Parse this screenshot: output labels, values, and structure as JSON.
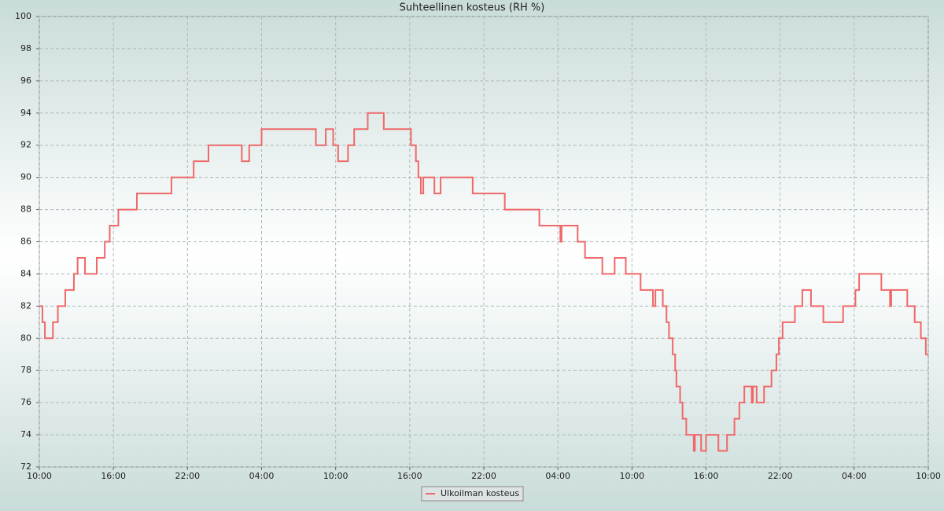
{
  "chart_data": {
    "type": "line",
    "step": "post",
    "title": "Suhteellinen kosteus (RH %)",
    "x": [
      0,
      0.25,
      0.45,
      1.1,
      1.5,
      2.1,
      2.8,
      3.1,
      3.7,
      4.65,
      5.3,
      5.7,
      6.4,
      7.9,
      10.7,
      12.5,
      13.7,
      16.4,
      17,
      18,
      22.4,
      23.2,
      23.8,
      24.2,
      25,
      25.5,
      26.6,
      27.9,
      30.1,
      30.5,
      30.7,
      30.9,
      31.1,
      32,
      32.5,
      35.1,
      37.7,
      40.5,
      42.2,
      42.3,
      43.6,
      44.2,
      45.6,
      46.6,
      47.5,
      48.7,
      49.7,
      49.9,
      50.5,
      50.8,
      51,
      51.3,
      51.5,
      51.6,
      51.9,
      52.1,
      52.4,
      53,
      53.1,
      53.6,
      54,
      55,
      55.7,
      56.3,
      56.7,
      57.1,
      57.7,
      57.8,
      58.1,
      58.7,
      59.3,
      59.7,
      59.9,
      60.2,
      61.2,
      61.8,
      62.5,
      63.5,
      65.1,
      66.1,
      66.4,
      68.2,
      68.9,
      69,
      70.3,
      70.9,
      71.4,
      71.8,
      72
    ],
    "series": [
      {
        "name": "Ulkoilman kosteus",
        "color": "#f06868",
        "values": [
          82,
          81,
          80,
          81,
          82,
          83,
          84,
          85,
          84,
          85,
          86,
          87,
          88,
          89,
          90,
          91,
          92,
          91,
          92,
          93,
          92,
          93,
          92,
          91,
          92,
          93,
          94,
          93,
          92,
          91,
          90,
          89,
          90,
          89,
          90,
          89,
          88,
          87,
          86,
          87,
          86,
          85,
          84,
          85,
          84,
          83,
          82,
          83,
          82,
          81,
          80,
          79,
          78,
          77,
          76,
          75,
          74,
          73,
          74,
          73,
          74,
          73,
          74,
          75,
          76,
          77,
          76,
          77,
          76,
          77,
          78,
          79,
          80,
          81,
          82,
          83,
          82,
          81,
          82,
          83,
          84,
          83,
          82,
          83,
          82,
          81,
          80,
          79,
          79
        ]
      }
    ],
    "xlim": [
      0,
      72
    ],
    "xticks": [
      {
        "value": 0,
        "label": "10:00"
      },
      {
        "value": 6,
        "label": "16:00"
      },
      {
        "value": 12,
        "label": "22:00"
      },
      {
        "value": 18,
        "label": "04:00"
      },
      {
        "value": 24,
        "label": "10:00"
      },
      {
        "value": 30,
        "label": "16:00"
      },
      {
        "value": 36,
        "label": "22:00"
      },
      {
        "value": 42,
        "label": "04:00"
      },
      {
        "value": 48,
        "label": "10:00"
      },
      {
        "value": 54,
        "label": "16:00"
      },
      {
        "value": 60,
        "label": "22:00"
      },
      {
        "value": 66,
        "label": "04:00"
      },
      {
        "value": 72,
        "label": "10:00"
      }
    ],
    "ylim": [
      72,
      100
    ],
    "yticks": [
      72,
      74,
      76,
      78,
      80,
      82,
      84,
      86,
      88,
      90,
      92,
      94,
      96,
      98,
      100
    ],
    "grid": true,
    "legend": "bottom"
  }
}
